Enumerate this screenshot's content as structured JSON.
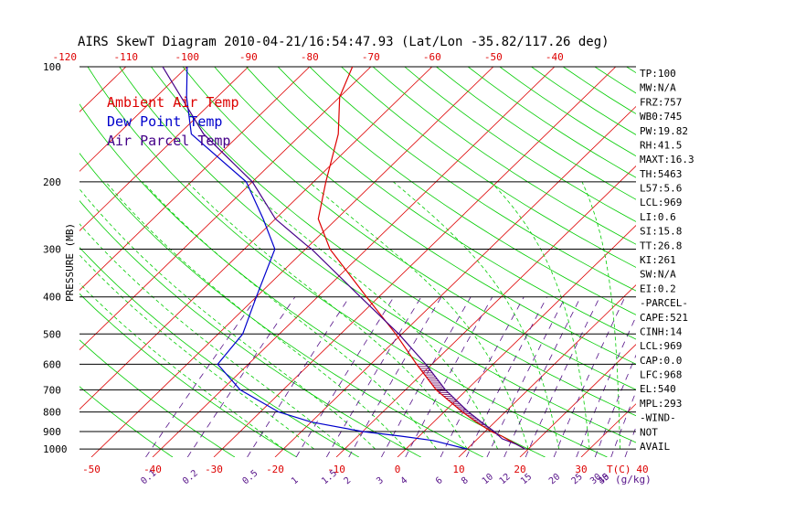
{
  "title": "AIRS SkewT Diagram 2010-04-21/16:54:47.93 (Lat/Lon -35.82/117.26 deg)",
  "colors": {
    "ambient": "#dd0000",
    "dewpoint": "#0000cc",
    "parcel": "#440088",
    "isotherm": "#dd0000",
    "dry_adiabat": "#00cc00",
    "moist_adiabat": "#00cc00",
    "mixing_ratio": "#551188",
    "isobar": "#000000",
    "cape_hatch": "#772277"
  },
  "chart_data": {
    "type": "line",
    "title": "AIRS SkewT Diagram 2010-04-21/16:54:47.93 (Lat/Lon -35.82/117.26 deg)",
    "ylabel": "PRESSURE (MB)",
    "y_scale": "log",
    "ylim": [
      1050,
      100
    ],
    "y_ticks": [
      100,
      200,
      300,
      400,
      500,
      600,
      700,
      800,
      900,
      1000
    ],
    "top_temp_ticks": [
      "-120",
      "-110",
      "-100",
      "-90",
      "-80",
      "-70",
      "-60",
      "-50",
      "-40"
    ],
    "bottom_temp_ticks": [
      "-50",
      "-40",
      "-30",
      "-20",
      "-10",
      "0",
      "10",
      "20",
      "30",
      "40"
    ],
    "bottom_temp_unit": "T(C)",
    "mixing_ratio_ticks": [
      "0.1",
      "0.2",
      "0.5",
      "1",
      "1.5",
      "2",
      "3",
      "4",
      "6",
      "8",
      "10",
      "12",
      "15",
      "20",
      "25",
      "30",
      "35",
      "40"
    ],
    "mixing_ratio_unit": "(g/kg)",
    "series": [
      {
        "name": "Ambient Air Temp",
        "pressure": [
          1000,
          950,
          925,
          900,
          850,
          800,
          700,
          600,
          500,
          400,
          300,
          250,
          200,
          150,
          120,
          100
        ],
        "temp": [
          19.5,
          15.5,
          13.5,
          11.0,
          7.0,
          3.0,
          -5.0,
          -12.5,
          -21.0,
          -32.0,
          -46.0,
          -53.0,
          -58.0,
          -64.0,
          -70.0,
          -73.0
        ]
      },
      {
        "name": "Dew Point Temp",
        "pressure": [
          1000,
          950,
          925,
          900,
          850,
          800,
          700,
          600,
          500,
          400,
          300,
          250,
          200,
          150,
          120,
          100
        ],
        "temp": [
          10.0,
          3.0,
          -3.0,
          -10.0,
          -20.0,
          -27.0,
          -37.0,
          -45.0,
          -46.0,
          -50.0,
          -55.0,
          -62.0,
          -71.0,
          -88.0,
          -95.0,
          -100.0
        ]
      },
      {
        "name": "Air Parcel Temp",
        "pressure": [
          1000,
          969,
          940,
          900,
          850,
          800,
          700,
          600,
          540,
          500,
          400,
          300,
          293,
          250,
          200,
          150,
          100
        ],
        "temp": [
          19.5,
          17.0,
          14.0,
          11.5,
          7.8,
          4.0,
          -3.5,
          -11.0,
          -16.5,
          -20.5,
          -33.0,
          -49.0,
          -50.5,
          -60.0,
          -70.0,
          -86.0,
          -104.0
        ]
      }
    ],
    "legend_placement": "top-left"
  },
  "indices": [
    "TP:100",
    "MW:N/A",
    "FRZ:757",
    "WB0:745",
    "PW:19.82",
    "RH:41.5",
    "MAXT:16.3",
    "TH:5463",
    "L57:5.6",
    "LCL:969",
    "LI:0.6",
    "SI:15.8",
    "TT:26.8",
    "KI:261",
    "SW:N/A",
    "EI:0.2",
    "-PARCEL-",
    "CAPE:521",
    "CINH:14",
    "LCL:969",
    "CAP:0.0",
    "LFC:968",
    "EL:540",
    "MPL:293",
    "-WIND-",
    "NOT",
    "AVAIL"
  ]
}
